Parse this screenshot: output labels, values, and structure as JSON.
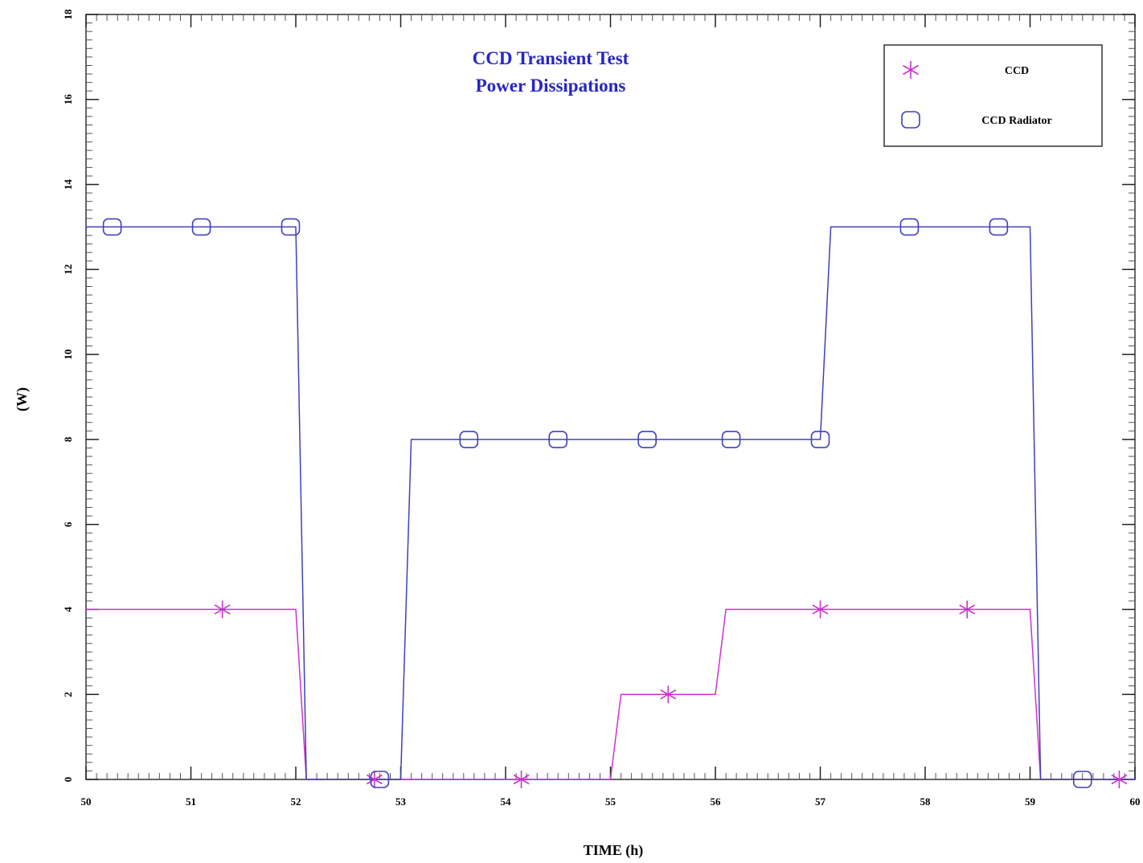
{
  "chart_data": {
    "type": "line",
    "title_lines": [
      "CCD Transient Test",
      "Power Dissipations"
    ],
    "xlabel": "TIME (h)",
    "ylabel": "(W)",
    "xlim": [
      50,
      60
    ],
    "ylim": [
      0,
      18
    ],
    "xticks": [
      50,
      51,
      52,
      53,
      54,
      55,
      56,
      57,
      58,
      59,
      60
    ],
    "yticks": [
      0,
      2,
      4,
      6,
      8,
      10,
      12,
      14,
      16,
      18
    ],
    "xtick_labels": [
      "50",
      "51",
      "52",
      "53",
      "54",
      "55",
      "56",
      "57",
      "58",
      "59",
      "60"
    ],
    "ytick_labels": [
      "0",
      "2",
      "4",
      "6",
      "8",
      "10",
      "12",
      "14",
      "16",
      "18"
    ],
    "grid": false,
    "legend_position": "top-right",
    "colors": {
      "ccd": "#cc33cc",
      "radiator": "#4040bb",
      "title": "#2626c8"
    },
    "series": [
      {
        "name": "CCD",
        "marker": "asterisk",
        "x": [
          50,
          52.0,
          52.1,
          55.0,
          55.1,
          56.0,
          56.1,
          59.0,
          59.1,
          60
        ],
        "y": [
          4,
          4,
          0,
          0,
          2,
          2,
          4,
          4,
          0,
          0
        ],
        "marker_x": [
          51.3,
          52.75,
          54.15,
          55.55,
          57.0,
          58.4,
          59.85
        ],
        "marker_y": [
          4,
          0,
          0,
          2,
          4,
          4,
          0
        ]
      },
      {
        "name": "CCD Radiator",
        "marker": "square",
        "x": [
          50,
          52.0,
          52.1,
          53.0,
          53.1,
          57.0,
          57.1,
          59.0,
          59.1,
          60
        ],
        "y": [
          13,
          13,
          0,
          0,
          8,
          8,
          13,
          13,
          0,
          0
        ],
        "marker_x": [
          50.25,
          51.1,
          51.95,
          52.8,
          53.65,
          54.5,
          55.35,
          56.15,
          57.0,
          57.85,
          58.7,
          59.5
        ],
        "marker_y": [
          13,
          13,
          13,
          0,
          8,
          8,
          8,
          8,
          8,
          13,
          13,
          0
        ]
      }
    ]
  }
}
